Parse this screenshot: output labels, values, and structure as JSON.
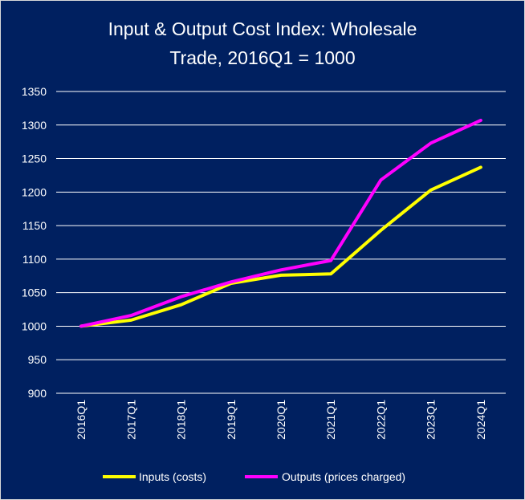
{
  "chart_data": {
    "type": "line",
    "title_lines": [
      "Input & Output Cost Index: Wholesale",
      "Trade, 2016Q1 = 1000"
    ],
    "categories": [
      "2016Q1",
      "2017Q1",
      "2018Q1",
      "2019Q1",
      "2020Q1",
      "2021Q1",
      "2022Q1",
      "2023Q1",
      "2024Q1"
    ],
    "ylim": [
      900,
      1350
    ],
    "yticks": [
      900,
      950,
      1000,
      1050,
      1100,
      1150,
      1200,
      1250,
      1300,
      1350
    ],
    "grid": true,
    "legend_position": "bottom",
    "background_color": "#002060",
    "series": [
      {
        "name": "Inputs (costs)",
        "color": "#ffff00",
        "values": [
          1000,
          1009,
          1032,
          1064,
          1076,
          1078,
          1143,
          1203,
          1237
        ]
      },
      {
        "name": "Outputs (prices charged)",
        "color": "#ff00ff",
        "values": [
          1000,
          1016,
          1044,
          1066,
          1084,
          1098,
          1218,
          1273,
          1307
        ]
      }
    ]
  }
}
